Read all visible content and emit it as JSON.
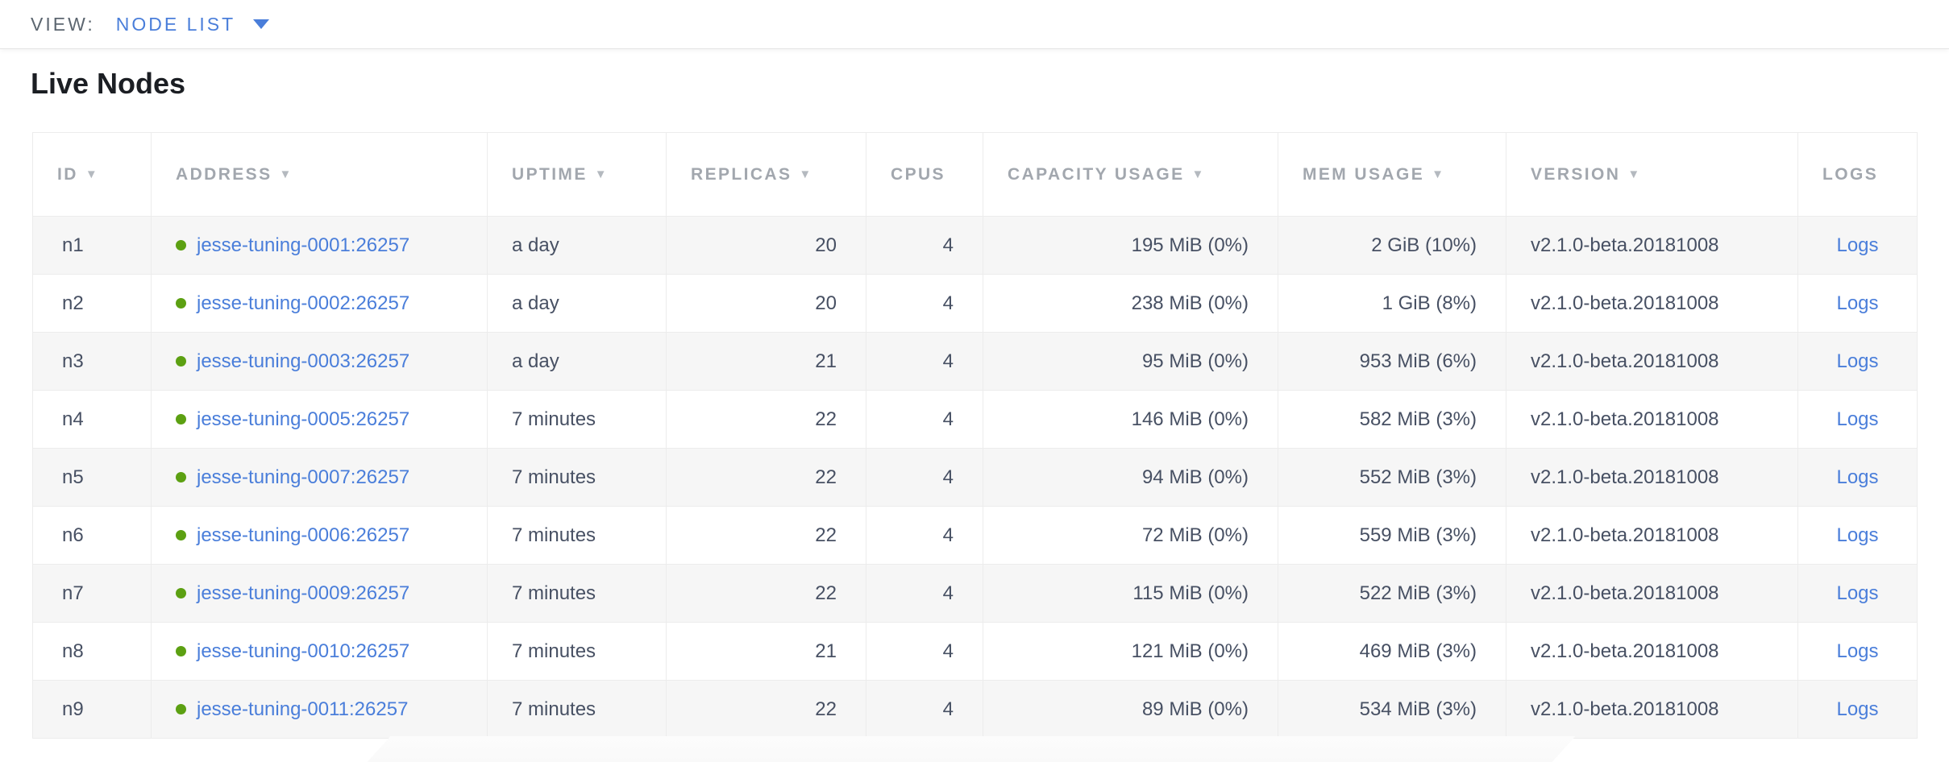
{
  "view_bar": {
    "label": "VIEW:",
    "selected": "NODE LIST"
  },
  "title": "Live Nodes",
  "table": {
    "sort_icon": "▼",
    "columns": [
      {
        "key": "id",
        "label": "ID",
        "sortable": true
      },
      {
        "key": "address",
        "label": "ADDRESS",
        "sortable": true
      },
      {
        "key": "uptime",
        "label": "UPTIME",
        "sortable": true
      },
      {
        "key": "replicas",
        "label": "REPLICAS",
        "sortable": true
      },
      {
        "key": "cpus",
        "label": "CPUS",
        "sortable": false
      },
      {
        "key": "capacity_usage",
        "label": "CAPACITY USAGE",
        "sortable": true
      },
      {
        "key": "mem_usage",
        "label": "MEM USAGE",
        "sortable": true
      },
      {
        "key": "version",
        "label": "VERSION",
        "sortable": true
      },
      {
        "key": "logs",
        "label": "LOGS",
        "sortable": false
      }
    ],
    "rows": [
      {
        "id": "n1",
        "status": "healthy",
        "address": "jesse-tuning-0001:26257",
        "uptime": "a day",
        "replicas": "20",
        "cpus": "4",
        "capacity_usage": "195 MiB (0%)",
        "mem_usage": "2 GiB (10%)",
        "version": "v2.1.0-beta.20181008",
        "logs": "Logs"
      },
      {
        "id": "n2",
        "status": "healthy",
        "address": "jesse-tuning-0002:26257",
        "uptime": "a day",
        "replicas": "20",
        "cpus": "4",
        "capacity_usage": "238 MiB (0%)",
        "mem_usage": "1 GiB (8%)",
        "version": "v2.1.0-beta.20181008",
        "logs": "Logs"
      },
      {
        "id": "n3",
        "status": "healthy",
        "address": "jesse-tuning-0003:26257",
        "uptime": "a day",
        "replicas": "21",
        "cpus": "4",
        "capacity_usage": "95 MiB (0%)",
        "mem_usage": "953 MiB (6%)",
        "version": "v2.1.0-beta.20181008",
        "logs": "Logs"
      },
      {
        "id": "n4",
        "status": "healthy",
        "address": "jesse-tuning-0005:26257",
        "uptime": "7 minutes",
        "replicas": "22",
        "cpus": "4",
        "capacity_usage": "146 MiB (0%)",
        "mem_usage": "582 MiB (3%)",
        "version": "v2.1.0-beta.20181008",
        "logs": "Logs"
      },
      {
        "id": "n5",
        "status": "healthy",
        "address": "jesse-tuning-0007:26257",
        "uptime": "7 minutes",
        "replicas": "22",
        "cpus": "4",
        "capacity_usage": "94 MiB (0%)",
        "mem_usage": "552 MiB (3%)",
        "version": "v2.1.0-beta.20181008",
        "logs": "Logs"
      },
      {
        "id": "n6",
        "status": "healthy",
        "address": "jesse-tuning-0006:26257",
        "uptime": "7 minutes",
        "replicas": "22",
        "cpus": "4",
        "capacity_usage": "72 MiB (0%)",
        "mem_usage": "559 MiB (3%)",
        "version": "v2.1.0-beta.20181008",
        "logs": "Logs"
      },
      {
        "id": "n7",
        "status": "healthy",
        "address": "jesse-tuning-0009:26257",
        "uptime": "7 minutes",
        "replicas": "22",
        "cpus": "4",
        "capacity_usage": "115 MiB (0%)",
        "mem_usage": "522 MiB (3%)",
        "version": "v2.1.0-beta.20181008",
        "logs": "Logs"
      },
      {
        "id": "n8",
        "status": "healthy",
        "address": "jesse-tuning-0010:26257",
        "uptime": "7 minutes",
        "replicas": "21",
        "cpus": "4",
        "capacity_usage": "121 MiB (0%)",
        "mem_usage": "469 MiB (3%)",
        "version": "v2.1.0-beta.20181008",
        "logs": "Logs"
      },
      {
        "id": "n9",
        "status": "healthy",
        "address": "jesse-tuning-0011:26257",
        "uptime": "7 minutes",
        "replicas": "22",
        "cpus": "4",
        "capacity_usage": "89 MiB (0%)",
        "mem_usage": "534 MiB (3%)",
        "version": "v2.1.0-beta.20181008",
        "logs": "Logs"
      }
    ]
  },
  "colors": {
    "link_blue": "#4a7eda",
    "status_healthy_green": "#5ca012",
    "header_text_gray": "#a2a7ae",
    "row_alt_gray": "#f6f6f6"
  }
}
